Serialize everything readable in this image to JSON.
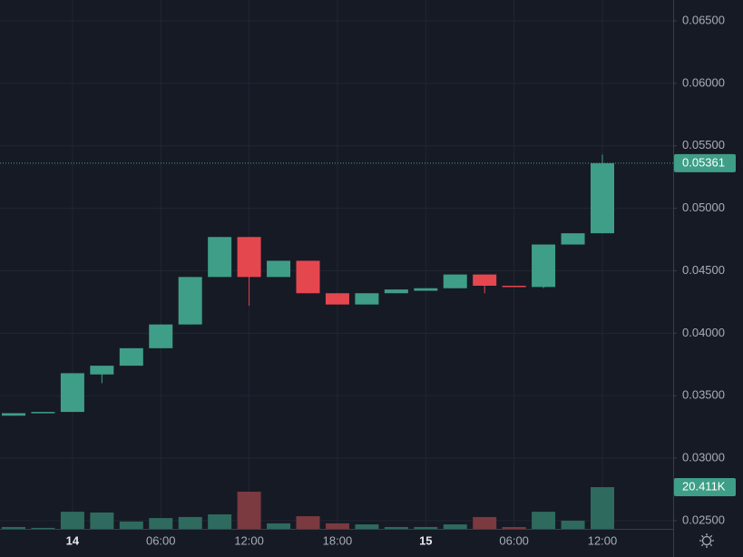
{
  "chart_data": {
    "type": "candlestick",
    "categories": [
      null,
      null,
      "14",
      null,
      null,
      "06:00",
      null,
      null,
      "12:00",
      null,
      null,
      "18:00",
      null,
      null,
      "15",
      null,
      null,
      "06:00",
      null,
      null,
      "12:00"
    ],
    "open": [
      0.0334,
      0.0336,
      0.0337,
      0.0367,
      0.0374,
      0.0388,
      0.0407,
      0.0445,
      0.0477,
      0.0445,
      0.0458,
      0.0432,
      0.0423,
      0.0432,
      0.0434,
      0.0436,
      0.0447,
      0.0438,
      0.0437,
      0.0471,
      0.048
    ],
    "high": [
      0.0336,
      0.0337,
      0.0368,
      0.0374,
      0.0388,
      0.0407,
      0.0445,
      0.0477,
      0.0477,
      0.0458,
      0.0458,
      0.0432,
      0.0432,
      0.0435,
      0.0436,
      0.0447,
      0.0447,
      0.0438,
      0.0471,
      0.048,
      0.0543
    ],
    "low": [
      0.0334,
      0.0336,
      0.0337,
      0.036,
      0.0374,
      0.0388,
      0.0407,
      0.0445,
      0.0422,
      0.0445,
      0.0432,
      0.0423,
      0.0423,
      0.0432,
      0.0434,
      0.0436,
      0.0432,
      0.0437,
      0.0436,
      0.0471,
      0.048
    ],
    "close": [
      0.0336,
      0.0337,
      0.0368,
      0.0374,
      0.0388,
      0.0407,
      0.0445,
      0.0477,
      0.0445,
      0.0458,
      0.0432,
      0.0423,
      0.0432,
      0.0435,
      0.0436,
      0.0447,
      0.0438,
      0.0437,
      0.0471,
      0.048,
      0.05361
    ],
    "volume": [
      900,
      500,
      8400,
      8000,
      3600,
      5300,
      5800,
      7100,
      18200,
      2700,
      6200,
      2700,
      2200,
      900,
      900,
      2200,
      5800,
      900,
      8400,
      4000,
      20411
    ],
    "last_price_label": "0.05361",
    "last_volume_label": "20.411K",
    "ylim": [
      0.02434,
      0.06667
    ],
    "yticks": [
      {
        "value": 0.025,
        "label": "0.02500"
      },
      {
        "value": 0.03,
        "label": "0.03000"
      },
      {
        "value": 0.035,
        "label": "0.03500"
      },
      {
        "value": 0.04,
        "label": "0.04000"
      },
      {
        "value": 0.045,
        "label": "0.04500"
      },
      {
        "value": 0.05,
        "label": "0.05000"
      },
      {
        "value": 0.055,
        "label": "0.05500"
      },
      {
        "value": 0.06,
        "label": "0.06000"
      },
      {
        "value": 0.065,
        "label": "0.06500"
      }
    ],
    "up_color": "#3f9e87",
    "down_color": "#e5474f",
    "up_volume_color": "#2e6a5d",
    "down_volume_color": "#7b3940",
    "grid": true
  }
}
